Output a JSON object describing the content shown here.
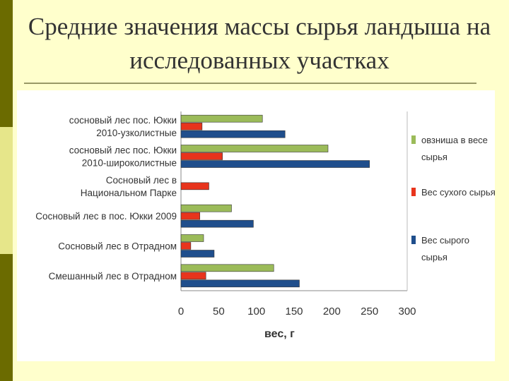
{
  "slide": {
    "title": "Средние значения массы сырья ландыша на исследованных участках"
  },
  "colors": {
    "green": "#9bbb59",
    "red": "#e8341c",
    "blue": "#1f4e8c"
  },
  "chart_data": {
    "type": "bar",
    "orientation": "horizontal",
    "categories": [
      [
        "сосновый лес пос. Юкки",
        "2010-узколистные"
      ],
      [
        "сосновый лес пос. Юкки",
        "2010-широколистные"
      ],
      [
        "Сосновый лес в",
        "Национальном Парке"
      ],
      [
        "Сосновый лес в пос. Юкки 2009"
      ],
      [
        "Сосновый лес в Отрадном"
      ],
      [
        "Смешанный лес в Отрадном"
      ]
    ],
    "series": [
      {
        "name": "овзниша в весе сырья",
        "color": "#9bbb59",
        "values": [
          108,
          195,
          0,
          67,
          30,
          123
        ]
      },
      {
        "name": "Вес сухого сырья",
        "color": "#e8341c",
        "values": [
          28,
          55,
          37,
          25,
          13,
          33
        ]
      },
      {
        "name": "Вес сырого сырья",
        "color": "#1f4e8c",
        "values": [
          138,
          250,
          0,
          96,
          44,
          157
        ]
      }
    ],
    "xlabel": "вес, г",
    "xlim": [
      0,
      300
    ],
    "xticks": [
      0,
      50,
      100,
      150,
      200,
      250,
      300
    ],
    "legend_position": "right",
    "legend": [
      {
        "lines": [
          "овзниша в весе",
          "сырья"
        ],
        "color": "#9bbb59"
      },
      {
        "lines": [
          "Вес сухого сырья"
        ],
        "color": "#e8341c"
      },
      {
        "lines": [
          "Вес сырого",
          "сырья"
        ],
        "color": "#1f4e8c"
      }
    ]
  }
}
